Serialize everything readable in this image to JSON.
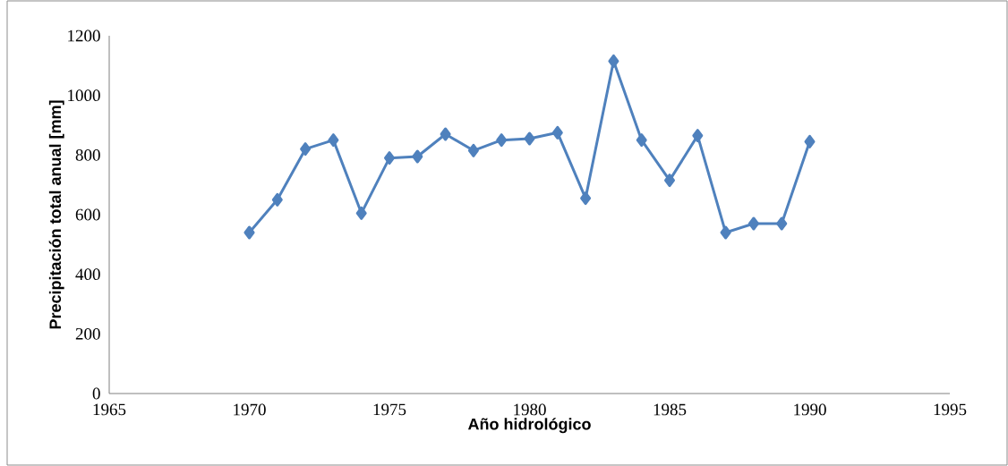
{
  "chart_data": {
    "type": "line",
    "xlabel": "Año hidrológico",
    "ylabel": "Precipitación total anual [mm]",
    "x": [
      1970,
      1971,
      1972,
      1973,
      1974,
      1975,
      1976,
      1977,
      1978,
      1979,
      1980,
      1981,
      1982,
      1983,
      1984,
      1985,
      1986,
      1987,
      1988,
      1989,
      1990
    ],
    "series": [
      {
        "color": "#4f81bd",
        "values": [
          540,
          650,
          820,
          850,
          605,
          790,
          795,
          870,
          815,
          850,
          855,
          875,
          655,
          1115,
          850,
          715,
          865,
          540,
          570,
          570,
          845
        ]
      }
    ],
    "xlim": [
      1965,
      1995
    ],
    "xticks": [
      1965,
      1970,
      1975,
      1980,
      1985,
      1990,
      1995
    ],
    "ylim": [
      0,
      1200
    ],
    "yticks": [
      0,
      200,
      400,
      600,
      800,
      1000,
      1200
    ],
    "marker": "diamond",
    "line_style": "solid"
  }
}
